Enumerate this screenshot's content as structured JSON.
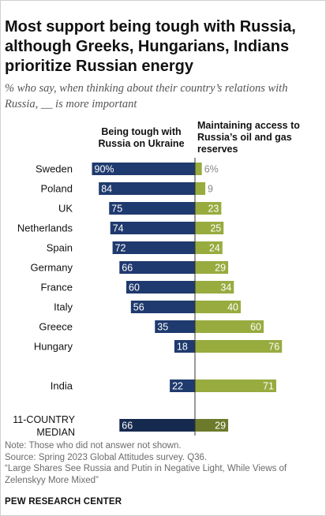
{
  "title": "Most support being tough with Russia, although Greeks, Hungarians, Indians prioritize Russian energy",
  "subtitle": "% who say, when thinking about their country’s relations with Russia, __ is more important",
  "colors": {
    "left": "#1f3a6e",
    "right": "#97ab3f",
    "median_left": "#16294f",
    "median_right": "#6c7a2c",
    "axis": "#333333"
  },
  "chart_data": {
    "type": "bar",
    "title": "Most support being tough with Russia, although Greeks, Hungarians, Indians prioritize Russian energy",
    "subtitle": "% who say, when thinking about their country’s relations with Russia, __ is more important",
    "categories": [
      "Sweden",
      "Poland",
      "UK",
      "Netherlands",
      "Spain",
      "Germany",
      "France",
      "Italy",
      "Greece",
      "Hungary",
      "India",
      "11-COUNTRY MEDIAN"
    ],
    "series": [
      {
        "name": "Being tough with Russia on Ukraine",
        "values": [
          90,
          84,
          75,
          74,
          72,
          66,
          60,
          56,
          35,
          18,
          22,
          66
        ],
        "labels": [
          "90%",
          "84",
          "75",
          "74",
          "72",
          "66",
          "60",
          "56",
          "35",
          "18",
          "22",
          "66"
        ]
      },
      {
        "name": "Maintaining access to Russia’s oil and gas reserves",
        "values": [
          6,
          9,
          23,
          25,
          24,
          29,
          34,
          40,
          60,
          76,
          71,
          29
        ],
        "labels": [
          "6%",
          "9",
          "23",
          "25",
          "24",
          "29",
          "34",
          "40",
          "60",
          "76",
          "71",
          "29"
        ]
      }
    ],
    "orientation": "horizontal-diverging",
    "xlim": [
      0,
      100
    ]
  },
  "notes": {
    "note": "Note: Those who did not answer not shown.",
    "source": "Source: Spring 2023 Global Attitudes survey. Q36.",
    "report": "“Large Shares See Russia and Putin in Negative Light, While Views of Zelenskyy More Mixed”"
  },
  "brand": "PEW RESEARCH CENTER"
}
